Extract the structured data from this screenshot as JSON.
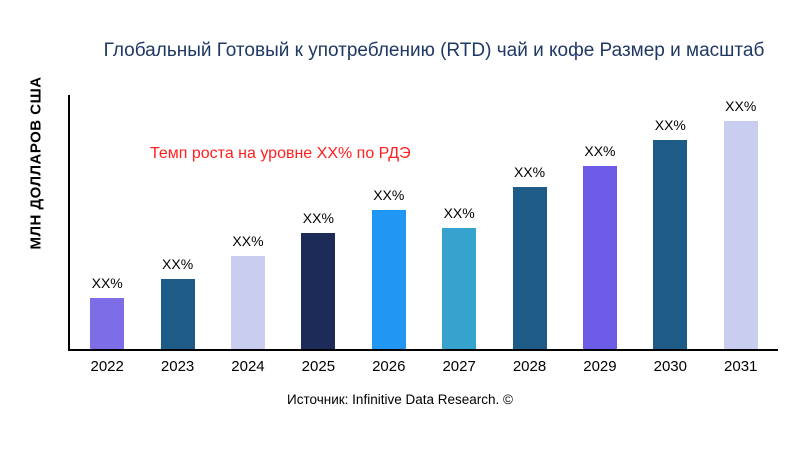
{
  "title": "Глобальный Готовый к употреблению (RTD) чай и кофе Размер и масштаб",
  "annotation": "Темп роста на уровне XX% по РДЭ",
  "source": "Источник: Infinitive Data Research. ©",
  "colors": {
    "title_text": "#1F3864",
    "annotation_text": "#FF1F1F",
    "axis": "#000000"
  },
  "chart_data": {
    "type": "bar",
    "title": "Глобальный Готовый к употреблению (RTD) чай и кофе Размер и масштаб",
    "xlabel": "",
    "ylabel": "МЛН ДОЛЛАРОВ США",
    "categories": [
      "2022",
      "2023",
      "2024",
      "2025",
      "2026",
      "2027",
      "2028",
      "2029",
      "2030",
      "2031"
    ],
    "values": [
      22,
      30,
      40,
      50,
      60,
      52,
      70,
      79,
      90,
      100
    ],
    "ylim": [
      0,
      108
    ],
    "value_note": "values are relative units estimated from bar heights; actual figures masked as XX% in source image",
    "bar_labels": [
      "XX%",
      "XX%",
      "XX%",
      "XX%",
      "XX%",
      "XX%",
      "XX%",
      "XX%",
      "XX%",
      "XX%"
    ],
    "bar_colors": [
      "#7D6EE8",
      "#1E5C87",
      "#C9CDF0",
      "#1C2B57",
      "#2196F3",
      "#36A2CE",
      "#1E5C87",
      "#6C5CE7",
      "#1E5C87",
      "#C9CDF0"
    ],
    "grid": false,
    "legend": "none",
    "annotation": "Темп роста на уровне XX% по РДЭ",
    "source": "Источник: Infinitive Data Research. ©"
  }
}
